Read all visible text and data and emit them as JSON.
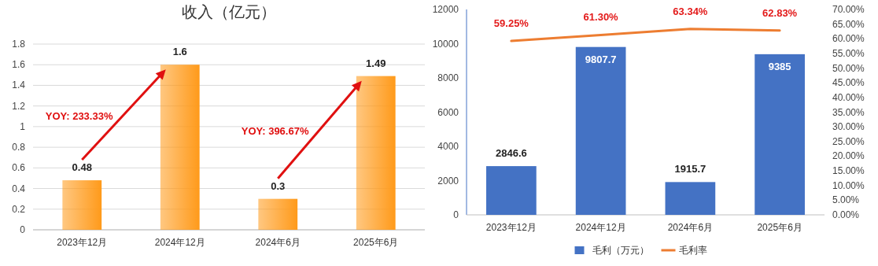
{
  "chart_data": [
    {
      "type": "bar",
      "title": "收入（亿元）",
      "categories": [
        "2023年12月",
        "2024年12月",
        "2024年6月",
        "2025年6月"
      ],
      "values": [
        0.48,
        1.6,
        0.3,
        1.49
      ],
      "color": "#ff9a1a",
      "ylim": [
        0,
        1.8
      ],
      "yticks": [
        0,
        0.2,
        0.4,
        0.6,
        0.8,
        1,
        1.2,
        1.4,
        1.6,
        1.8
      ],
      "grid": "y",
      "data_labels": true,
      "annotations": [
        "YOY: 233.33%",
        "YOY: 396.67%"
      ]
    },
    {
      "type": "bar",
      "categories": [
        "2023年12月",
        "2024年12月",
        "2024年6月",
        "2025年6月"
      ],
      "series": [
        {
          "name": "毛利（万元）",
          "color": "#4472c4",
          "values": [
            2846.6,
            9807.7,
            1915.7,
            9385
          ],
          "value_labels": [
            "2846.6",
            "9807.7",
            "1915.7",
            "9385"
          ]
        },
        {
          "name": "毛利率",
          "type": "line",
          "axis": "y2",
          "color": "#ed7d31",
          "values": [
            59.25,
            61.3,
            63.34,
            62.83
          ],
          "value_labels": [
            "59.25%",
            "61.30%",
            "63.34%",
            "62.83%"
          ]
        }
      ],
      "ylim": [
        0,
        12000
      ],
      "yticks": [
        0,
        2000,
        4000,
        6000,
        8000,
        10000,
        12000
      ],
      "y2lim": [
        0,
        70
      ],
      "y2ticks": [
        {
          "value": 0,
          "label": "0.00%"
        },
        {
          "value": 5,
          "label": "5.00%"
        },
        {
          "value": 10,
          "label": "10.00%"
        },
        {
          "value": 15,
          "label": "15.00%"
        },
        {
          "value": 20,
          "label": "20.00%"
        },
        {
          "value": 25,
          "label": "25.00%"
        },
        {
          "value": 30,
          "label": "30.00%"
        },
        {
          "value": 35,
          "label": "35.00%"
        },
        {
          "value": 40,
          "label": "40.00%"
        },
        {
          "value": 45,
          "label": "45.00%"
        },
        {
          "value": 50,
          "label": "50.00%"
        },
        {
          "value": 55,
          "label": "55.00%"
        },
        {
          "value": 60,
          "label": "60.00%"
        },
        {
          "value": 65,
          "label": "65.00%"
        },
        {
          "value": 70,
          "label": "70.00%"
        }
      ],
      "legend": "bottom"
    }
  ]
}
